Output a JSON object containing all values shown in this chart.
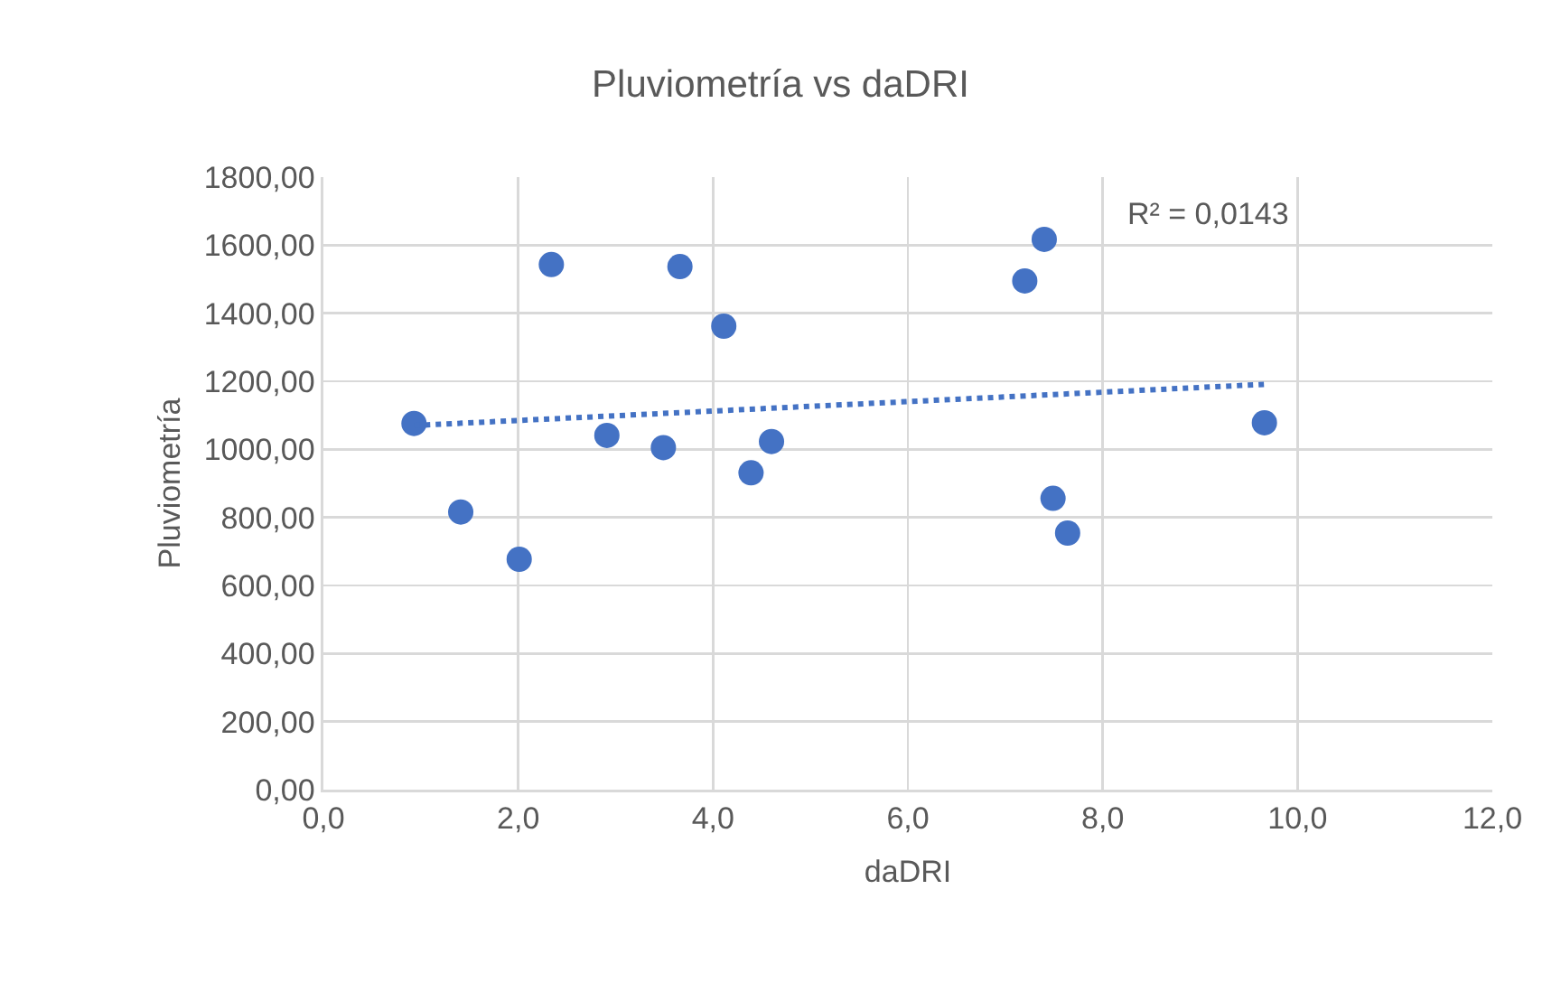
{
  "chart_data": {
    "type": "scatter",
    "title": "Pluviometría vs daDRI",
    "xlabel": "daDRI",
    "ylabel": "Pluviometría",
    "series": [
      {
        "color": "#4472c4",
        "marker": "circle",
        "x": [
          0.93,
          1.41,
          2.01,
          2.34,
          2.91,
          3.49,
          3.66,
          4.11,
          4.39,
          4.6,
          7.2,
          7.4,
          7.49,
          7.64,
          9.66
        ],
        "values": [
          1076,
          816,
          677,
          1543,
          1041,
          1005,
          1537,
          1362,
          931,
          1023,
          1495,
          1617,
          856,
          754,
          1078
        ]
      },
      {
        "type": "line",
        "color": "#4472c4",
        "line_style": "dotted",
        "marker": "none",
        "x": [
          0.93,
          9.66
        ],
        "values": [
          1070,
          1191
        ]
      }
    ],
    "annotations": [
      "R² = 0,0143"
    ],
    "xlim": [
      0,
      12
    ],
    "xticks": [
      {
        "value": 0,
        "label": "0,0"
      },
      {
        "value": 2,
        "label": "2,0"
      },
      {
        "value": 4,
        "label": "4,0"
      },
      {
        "value": 6,
        "label": "6,0"
      },
      {
        "value": 8,
        "label": "8,0"
      },
      {
        "value": 10,
        "label": "10,0"
      },
      {
        "value": 12,
        "label": "12,0"
      }
    ],
    "ylim": [
      0,
      1800
    ],
    "yticks": [
      {
        "value": 0,
        "label": "0,00"
      },
      {
        "value": 200,
        "label": "200,00"
      },
      {
        "value": 400,
        "label": "400,00"
      },
      {
        "value": 600,
        "label": "600,00"
      },
      {
        "value": 800,
        "label": "800,00"
      },
      {
        "value": 1000,
        "label": "1000,00"
      },
      {
        "value": 1200,
        "label": "1200,00"
      },
      {
        "value": 1400,
        "label": "1400,00"
      },
      {
        "value": 1600,
        "label": "1600,00"
      },
      {
        "value": 1800,
        "label": "1800,00"
      }
    ],
    "grid": true
  }
}
